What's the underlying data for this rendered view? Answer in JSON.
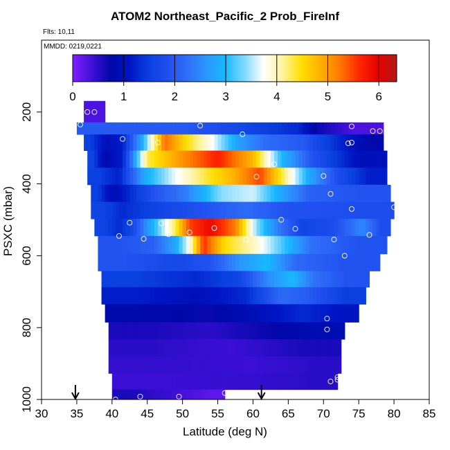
{
  "title": "ATOM2 Northeast_Pacific_2 Prob_FireInf",
  "flights_label": "Flts: 10,11",
  "mmdd_label": "MMDD: 0219,0221",
  "chart_data": {
    "type": "heatmap",
    "title": "ATOM2 Northeast_Pacific_2 Prob_FireInf",
    "xlabel": "Latitude (deg N)",
    "ylabel": "PSXC (mbar)",
    "xlim": [
      30,
      85
    ],
    "ylim": [
      1000,
      0
    ],
    "x_ticks": [
      30,
      35,
      40,
      45,
      50,
      55,
      60,
      65,
      70,
      75,
      80,
      85
    ],
    "y_ticks": [
      200,
      400,
      600,
      800,
      1000
    ],
    "colorbar": {
      "range": [
        0,
        6.35
      ],
      "ticks": [
        0,
        1,
        2,
        3,
        4,
        5,
        6
      ],
      "colors": [
        "#7f1fff",
        "#4010d8",
        "#0008a8",
        "#0015c4",
        "#0a40e0",
        "#2050f0",
        "#2f6df8",
        "#2a96ff",
        "#18b8ff",
        "#7fd8ff",
        "#ffffff",
        "#fff3a0",
        "#ffdf00",
        "#ffb000",
        "#ff7a00",
        "#ff2a00",
        "#e80000",
        "#b51818"
      ]
    },
    "rows": [
      {
        "p": 200,
        "start": 36,
        "end": 39,
        "segments": [
          [
            36,
            39,
            0.3
          ]
        ]
      },
      {
        "p": 240,
        "start": 35,
        "end": 78.5,
        "segments": [
          [
            35,
            65,
            2.0
          ],
          [
            65,
            68,
            1.3
          ],
          [
            68,
            70,
            0.7
          ],
          [
            70,
            78.5,
            0.3
          ]
        ]
      },
      {
        "p": 285,
        "start": 36,
        "end": 78.5,
        "segments": [
          [
            36,
            38,
            1.5
          ],
          [
            38,
            40,
            1.0
          ],
          [
            40,
            43,
            1.2
          ],
          [
            43,
            46,
            3.0
          ],
          [
            46,
            49,
            5.3
          ],
          [
            49,
            52,
            4.5
          ],
          [
            52,
            56,
            3.8
          ],
          [
            56,
            60,
            2.7
          ],
          [
            60,
            64,
            2.2
          ],
          [
            64,
            70,
            2.0
          ],
          [
            70,
            74,
            1.3
          ],
          [
            74,
            78.5,
            0.8
          ]
        ]
      },
      {
        "p": 330,
        "start": 36.5,
        "end": 79,
        "segments": [
          [
            36.5,
            38,
            1.6
          ],
          [
            38,
            40,
            0.8
          ],
          [
            40,
            43,
            1.2
          ],
          [
            43,
            47,
            4.3
          ],
          [
            47,
            52,
            5.0
          ],
          [
            52,
            58,
            5.7
          ],
          [
            58,
            62,
            4.8
          ],
          [
            62,
            66,
            3.0
          ],
          [
            66,
            71,
            1.9
          ],
          [
            71,
            79,
            1.0
          ]
        ]
      },
      {
        "p": 380,
        "start": 36.5,
        "end": 79,
        "segments": [
          [
            36.5,
            40,
            1.5
          ],
          [
            40,
            42,
            1.2
          ],
          [
            42,
            47,
            2.8
          ],
          [
            47,
            51,
            3.7
          ],
          [
            51,
            55,
            4.3
          ],
          [
            55,
            59,
            4.8
          ],
          [
            59,
            63,
            5.5
          ],
          [
            63,
            66,
            4.2
          ],
          [
            66,
            70,
            2.8
          ],
          [
            70,
            74,
            1.8
          ],
          [
            74,
            79,
            1.2
          ]
        ]
      },
      {
        "p": 425,
        "start": 37,
        "end": 79.5,
        "segments": [
          [
            37,
            39,
            1.5
          ],
          [
            39,
            41,
            0.9
          ],
          [
            41,
            44,
            1.3
          ],
          [
            44,
            48,
            1.9
          ],
          [
            48,
            53,
            2.4
          ],
          [
            53,
            58,
            3.4
          ],
          [
            58,
            62,
            3.6
          ],
          [
            62,
            66,
            2.8
          ],
          [
            66,
            70,
            2.1
          ],
          [
            70,
            79.5,
            1.9
          ]
        ]
      },
      {
        "p": 475,
        "start": 37,
        "end": 80,
        "segments": [
          [
            37,
            40,
            1.6
          ],
          [
            40,
            43,
            1.3
          ],
          [
            43,
            50,
            1.6
          ],
          [
            50,
            56,
            1.9
          ],
          [
            56,
            62,
            2.2
          ],
          [
            62,
            68,
            1.9
          ],
          [
            68,
            80,
            1.8
          ]
        ]
      },
      {
        "p": 520,
        "start": 37.5,
        "end": 79.5,
        "segments": [
          [
            37.5,
            40,
            1.6
          ],
          [
            40,
            42,
            1.3
          ],
          [
            42,
            44,
            1.7
          ],
          [
            44,
            46,
            2.6
          ],
          [
            46,
            48,
            3.4
          ],
          [
            48,
            50,
            4.3
          ],
          [
            50,
            52,
            5.5
          ],
          [
            52,
            56,
            5.9
          ],
          [
            56,
            59,
            5.2
          ],
          [
            59,
            62,
            3.4
          ],
          [
            62,
            65,
            2.4
          ],
          [
            65,
            69,
            1.6
          ],
          [
            69,
            74,
            1.8
          ],
          [
            74,
            77,
            2.5
          ],
          [
            77,
            79.5,
            1.8
          ]
        ]
      },
      {
        "p": 570,
        "start": 38,
        "end": 79,
        "segments": [
          [
            38,
            44,
            1.9
          ],
          [
            44,
            48,
            2.1
          ],
          [
            48,
            50,
            2.8
          ],
          [
            50,
            52,
            3.8
          ],
          [
            52,
            54,
            5.6
          ],
          [
            54,
            58,
            4.5
          ],
          [
            58,
            62,
            4.0
          ],
          [
            62,
            66,
            3.2
          ],
          [
            66,
            70,
            2.3
          ],
          [
            70,
            79,
            1.9
          ]
        ]
      },
      {
        "p": 620,
        "start": 38,
        "end": 78,
        "segments": [
          [
            38,
            46,
            1.9
          ],
          [
            46,
            52,
            1.7
          ],
          [
            52,
            56,
            1.9
          ],
          [
            56,
            60,
            2.6
          ],
          [
            60,
            64,
            3.0
          ],
          [
            64,
            68,
            2.2
          ],
          [
            68,
            78,
            1.9
          ]
        ]
      },
      {
        "p": 665,
        "start": 38.5,
        "end": 76.5,
        "segments": [
          [
            38.5,
            48,
            1.5
          ],
          [
            48,
            56,
            1.3
          ],
          [
            56,
            60,
            1.6
          ],
          [
            60,
            64,
            2.5
          ],
          [
            64,
            67,
            3.0
          ],
          [
            67,
            70,
            2.3
          ],
          [
            70,
            76.5,
            1.9
          ]
        ]
      },
      {
        "p": 710,
        "start": 38.5,
        "end": 76,
        "segments": [
          [
            38.5,
            48,
            1.2
          ],
          [
            48,
            56,
            1.0
          ],
          [
            56,
            62,
            1.3
          ],
          [
            62,
            66,
            2.2
          ],
          [
            66,
            70,
            2.0
          ],
          [
            70,
            76,
            1.5
          ]
        ]
      },
      {
        "p": 760,
        "start": 39,
        "end": 75,
        "segments": [
          [
            39,
            50,
            0.8
          ],
          [
            50,
            58,
            0.7
          ],
          [
            58,
            64,
            1.0
          ],
          [
            64,
            70,
            1.3
          ],
          [
            70,
            75,
            1.1
          ]
        ]
      },
      {
        "p": 810,
        "start": 39.5,
        "end": 73,
        "segments": [
          [
            39.5,
            50,
            0.6
          ],
          [
            50,
            58,
            0.5
          ],
          [
            58,
            66,
            0.7
          ],
          [
            66,
            73,
            0.9
          ]
        ]
      },
      {
        "p": 855,
        "start": 39.5,
        "end": 72.5,
        "segments": [
          [
            39.5,
            52,
            0.5
          ],
          [
            52,
            62,
            0.4
          ],
          [
            62,
            72.5,
            0.6
          ]
        ]
      },
      {
        "p": 905,
        "start": 39.5,
        "end": 72.5,
        "segments": [
          [
            39.5,
            55,
            0.45
          ],
          [
            55,
            65,
            0.4
          ],
          [
            65,
            72.5,
            0.5
          ]
        ]
      },
      {
        "p": 950,
        "start": 40,
        "end": 72,
        "segments": [
          [
            40,
            55,
            0.4
          ],
          [
            55,
            65,
            0.45
          ],
          [
            65,
            72,
            0.5
          ]
        ]
      },
      {
        "p": 995,
        "start": 40,
        "end": 56,
        "segments": [
          [
            40,
            45,
            0.6
          ],
          [
            45,
            52,
            0.4
          ],
          [
            52,
            56,
            0.2
          ]
        ]
      }
    ],
    "points": [
      [
        35.5,
        205
      ],
      [
        36.5,
        200
      ],
      [
        37.5,
        200
      ],
      [
        35.5,
        235
      ],
      [
        41.5,
        275
      ],
      [
        46.5,
        285
      ],
      [
        52.5,
        238
      ],
      [
        58.5,
        262
      ],
      [
        68,
        218
      ],
      [
        73.5,
        287
      ],
      [
        74,
        285
      ],
      [
        74,
        240
      ],
      [
        77,
        253
      ],
      [
        78,
        253
      ],
      [
        63,
        345
      ],
      [
        60.5,
        380
      ],
      [
        70,
        378
      ],
      [
        36.5,
        428
      ],
      [
        71,
        428
      ],
      [
        74,
        470
      ],
      [
        80,
        465
      ],
      [
        42.5,
        508
      ],
      [
        47,
        510
      ],
      [
        64,
        500
      ],
      [
        66,
        525
      ],
      [
        41,
        545
      ],
      [
        44.5,
        553
      ],
      [
        48,
        540
      ],
      [
        51,
        535
      ],
      [
        54.5,
        523
      ],
      [
        59,
        555
      ],
      [
        71.5,
        555
      ],
      [
        76.5,
        542
      ],
      [
        73,
        600
      ],
      [
        70.5,
        775
      ],
      [
        70.5,
        805
      ],
      [
        71,
        950
      ],
      [
        72,
        945
      ],
      [
        72,
        938
      ],
      [
        40.5,
        1000
      ],
      [
        44,
        992
      ],
      [
        49.5,
        992
      ],
      [
        56,
        982
      ]
    ],
    "markers": [
      34.8,
      61.2
    ]
  }
}
